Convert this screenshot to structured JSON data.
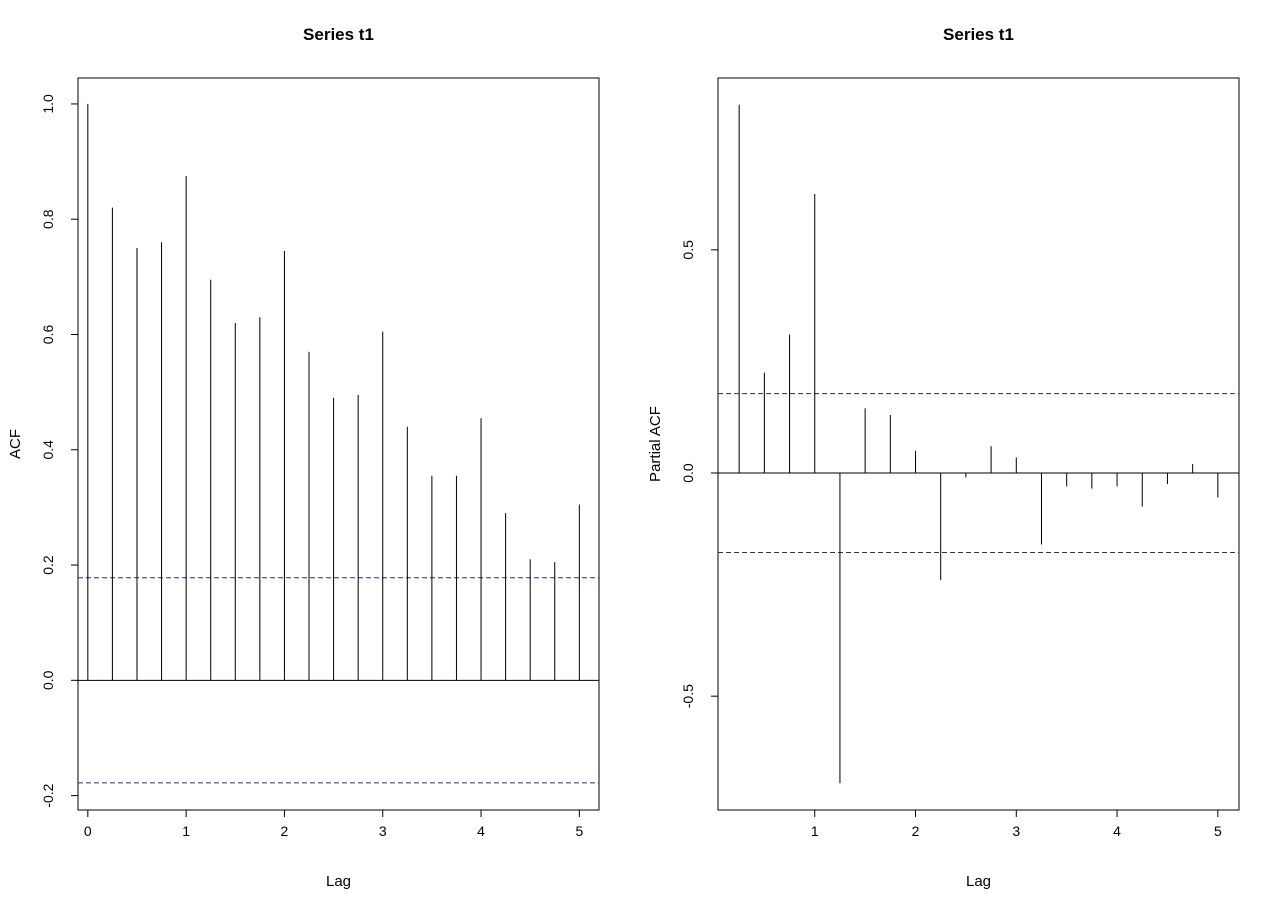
{
  "chart_data": [
    {
      "type": "bar",
      "title": "Series  t1",
      "xlabel": "Lag",
      "ylabel": "ACF",
      "xlim": [
        -0.1,
        5.2
      ],
      "ylim": [
        -0.225,
        1.045
      ],
      "xticks": [
        "0",
        "1",
        "2",
        "3",
        "4",
        "5"
      ],
      "yticks": [
        "-0.2",
        "0.0",
        "0.2",
        "0.4",
        "0.6",
        "0.8",
        "1.0"
      ],
      "conf_bound": 0.178,
      "x": [
        0,
        0.25,
        0.5,
        0.75,
        1,
        1.25,
        1.5,
        1.75,
        2,
        2.25,
        2.5,
        2.75,
        3,
        3.25,
        3.5,
        3.75,
        4,
        4.25,
        4.5,
        4.75,
        5
      ],
      "values": [
        1.0,
        0.82,
        0.75,
        0.76,
        0.875,
        0.695,
        0.62,
        0.63,
        0.745,
        0.57,
        0.49,
        0.495,
        0.605,
        0.44,
        0.355,
        0.355,
        0.455,
        0.29,
        0.21,
        0.205,
        0.305
      ],
      "grid": false
    },
    {
      "type": "bar",
      "title": "Series  t1",
      "xlabel": "Lag",
      "ylabel": "Partial ACF",
      "xlim": [
        0.04,
        5.21
      ],
      "ylim": [
        -0.755,
        0.885
      ],
      "xticks": [
        "1",
        "2",
        "3",
        "4",
        "5"
      ],
      "yticks": [
        "-0.5",
        "0.0",
        "0.5"
      ],
      "conf_bound": 0.178,
      "x": [
        0.25,
        0.5,
        0.75,
        1,
        1.25,
        1.5,
        1.75,
        2,
        2.25,
        2.5,
        2.75,
        3,
        3.25,
        3.5,
        3.75,
        4,
        4.25,
        4.5,
        4.75,
        5
      ],
      "values": [
        0.825,
        0.225,
        0.31,
        0.625,
        -0.695,
        0.145,
        0.13,
        0.05,
        -0.24,
        -0.01,
        0.06,
        0.035,
        -0.16,
        -0.03,
        -0.035,
        -0.03,
        -0.075,
        -0.025,
        0.02,
        -0.055
      ],
      "grid": false
    }
  ]
}
